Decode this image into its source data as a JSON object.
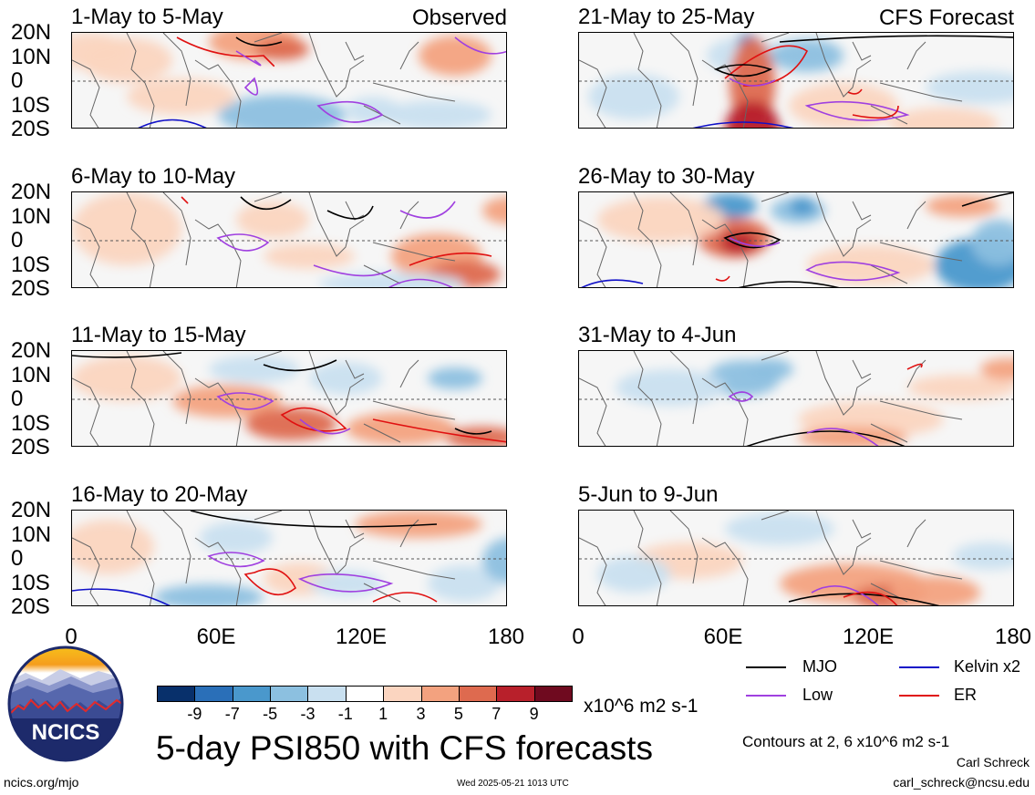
{
  "chart_data": {
    "type": "heatmap",
    "title": "5-day PSI850 with CFS forecasts",
    "units": "x10^6 m2 s-1",
    "x_ticks": [
      "0",
      "60E",
      "120E",
      "180"
    ],
    "y_ticks": [
      "20N",
      "10N",
      "0",
      "10S",
      "20S"
    ],
    "xlim": [
      0,
      180
    ],
    "ylim": [
      -20,
      20
    ],
    "contour_note": "Contours at 2, 6 x10^6 m2 s-1",
    "colorbar": {
      "levels": [
        "-9",
        "-7",
        "-5",
        "-3",
        "-1",
        "1",
        "3",
        "5",
        "7",
        "9"
      ],
      "colors": [
        "#08306b",
        "#2a6fb8",
        "#4a98cc",
        "#8cc0e0",
        "#c9e0f0",
        "#ffffff",
        "#fbd5c0",
        "#f3a27f",
        "#de6a4f",
        "#b8202b",
        "#6f0a1f"
      ]
    },
    "legend": [
      {
        "label": "MJO",
        "color": "#000000"
      },
      {
        "label": "Kelvin x2",
        "color": "#1010c8"
      },
      {
        "label": "Low",
        "color": "#a040e0"
      },
      {
        "label": "ER",
        "color": "#e01010"
      }
    ],
    "panels": [
      {
        "title": "1-May to 5-May",
        "tag": "Observed"
      },
      {
        "title": "6-May to 10-May",
        "tag": ""
      },
      {
        "title": "11-May to 15-May",
        "tag": ""
      },
      {
        "title": "16-May to 20-May",
        "tag": ""
      },
      {
        "title": "21-May to 25-May",
        "tag": "CFS Forecast"
      },
      {
        "title": "26-May to 30-May",
        "tag": ""
      },
      {
        "title": "31-May to 4-Jun",
        "tag": ""
      },
      {
        "title": "5-Jun to 9-Jun",
        "tag": ""
      }
    ]
  },
  "branding": {
    "logo_text": "NCICS",
    "site": "ncics.org/mjo",
    "timestamp": "Wed 2025-05-21 1013 UTC",
    "author": "Carl Schreck",
    "email": "carl_schreck@ncsu.edu"
  }
}
